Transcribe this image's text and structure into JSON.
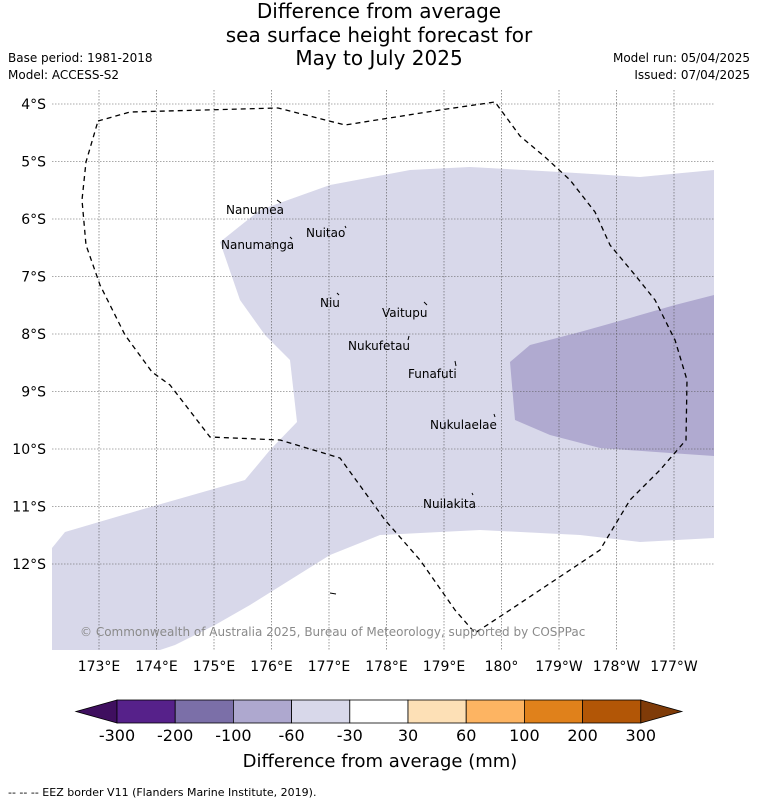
{
  "header": {
    "title_lines": [
      "Difference from average",
      "sea surface height forecast for",
      "May to July 2025"
    ],
    "base_period": "Base period: 1981-2018",
    "model": "Model: ACCESS-S2",
    "model_run": "Model run: 05/04/2025",
    "issued": "Issued: 07/04/2025"
  },
  "map": {
    "lat_labels": [
      "4°S",
      "5°S",
      "6°S",
      "7°S",
      "8°S",
      "9°S",
      "10°S",
      "11°S",
      "12°S"
    ],
    "lon_labels": [
      "173°E",
      "174°E",
      "175°E",
      "176°E",
      "177°E",
      "178°E",
      "179°E",
      "180°",
      "179°W",
      "178°W",
      "177°W"
    ],
    "islands": [
      "Nanumea",
      "Nuitao",
      "Nanumanga",
      "Niu",
      "Vaitupu",
      "Nukufetau",
      "Funafuti",
      "Nukulaelae",
      "Nuilakita"
    ],
    "copyright": "© Commonwealth of Australia 2025, Bureau of Meteorology, supported by COSPPac"
  },
  "legend": {
    "title": "Difference from average (mm)",
    "ticks": [
      "-300",
      "-200",
      "-100",
      "-60",
      "-30",
      "30",
      "60",
      "100",
      "200",
      "300"
    ],
    "colors": [
      "#3f0f5f",
      "#56218a",
      "#7b6fa8",
      "#aea8cf",
      "#d8d8ea",
      "#ffffff",
      "#fde0b6",
      "#fdb462",
      "#e0811b",
      "#b25606",
      "#7f3b08"
    ]
  },
  "footnote": "--  --  -- EEZ border V11 (Flanders Marine Institute, 2019)."
}
